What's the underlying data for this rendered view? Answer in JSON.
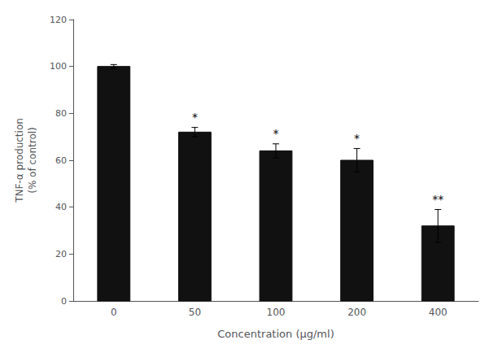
{
  "chart_data": {
    "type": "bar",
    "categories": [
      "0",
      "50",
      "100",
      "200",
      "400"
    ],
    "values": [
      100,
      72,
      64,
      60,
      32
    ],
    "errors": [
      0.8,
      2.0,
      3.0,
      5.0,
      7.0
    ],
    "annotations": [
      null,
      "*",
      "*",
      "*",
      "**"
    ],
    "color": "#111111",
    "xlabel": "Concentration (μg/ml)",
    "ylabel": "TNF-α production\n(% of control)",
    "ylim": [
      0,
      120
    ],
    "yticks": [
      0,
      20,
      40,
      60,
      80,
      100,
      120
    ],
    "grid": false
  }
}
